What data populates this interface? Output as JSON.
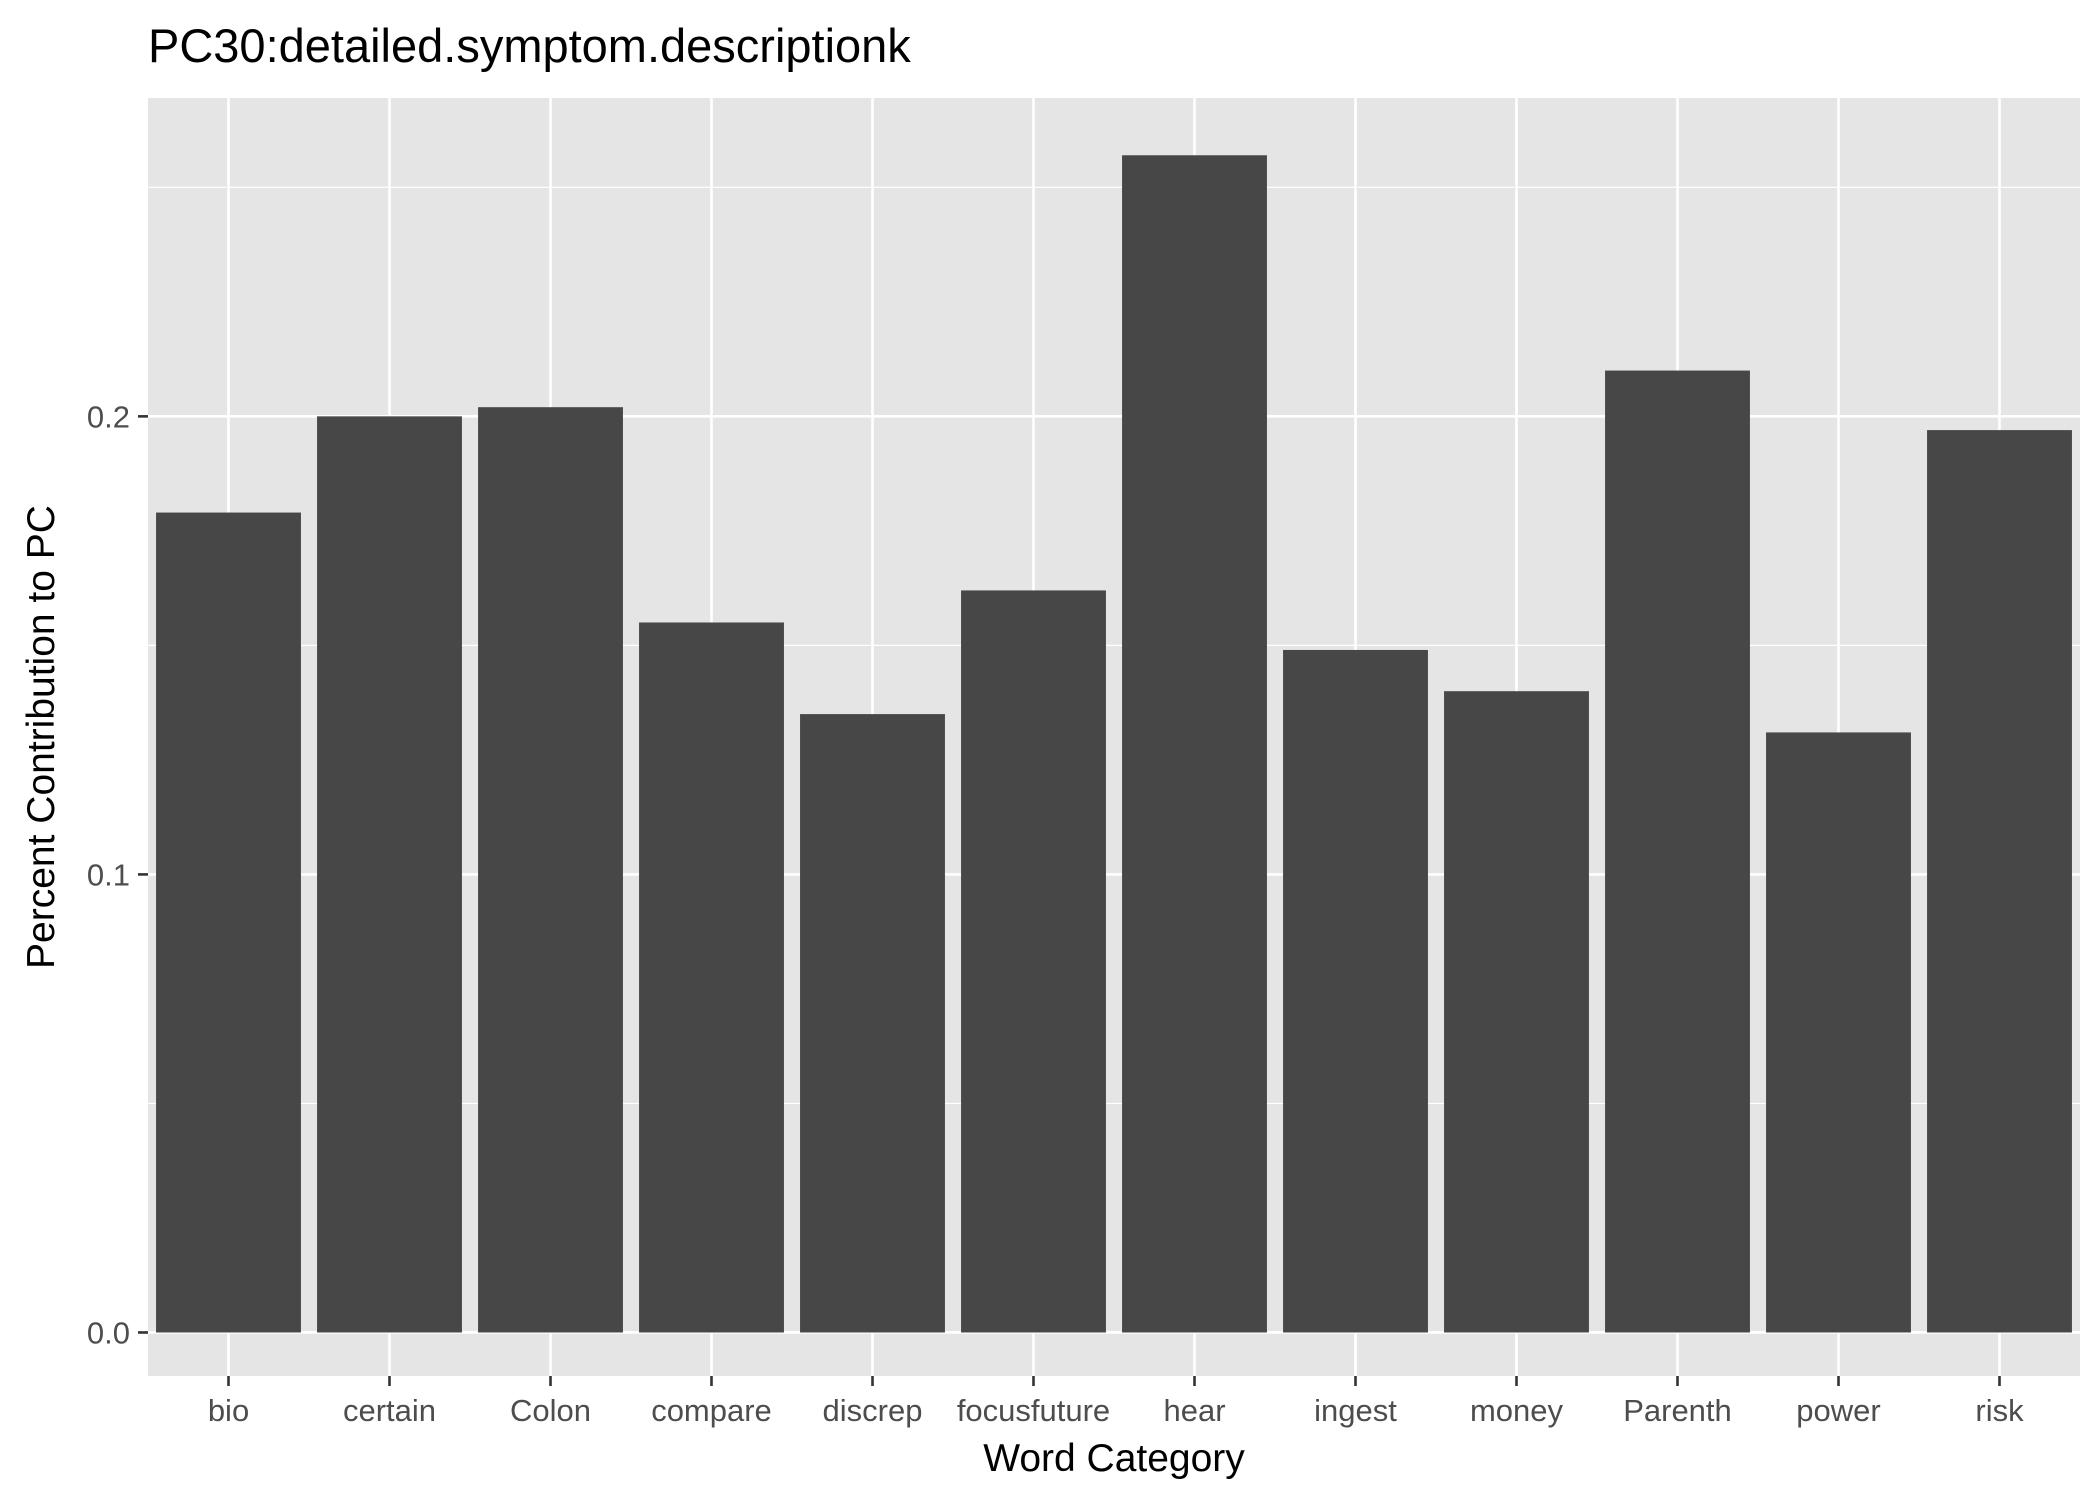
{
  "chart_data": {
    "type": "bar",
    "title": "PC30:detailed.symptom.descriptionk",
    "xlabel": "Word Category",
    "ylabel": "Percent Contribution to PC",
    "categories": [
      "bio",
      "certain",
      "Colon",
      "compare",
      "discrep",
      "focusfuture",
      "hear",
      "ingest",
      "money",
      "Parenth",
      "power",
      "risk"
    ],
    "values": [
      0.179,
      0.2,
      0.202,
      0.155,
      0.135,
      0.162,
      0.257,
      0.149,
      0.14,
      0.21,
      0.131,
      0.197
    ],
    "y_ticks": [
      0.0,
      0.1,
      0.2
    ],
    "y_tick_labels": [
      "0.0",
      "0.1",
      "0.2"
    ],
    "ylim": [
      -0.0095,
      0.2695
    ],
    "grid": true,
    "legend": "none",
    "colors": {
      "panel_background": "#e5e5e5",
      "grid": "#ffffff",
      "bar": "#474747",
      "tick_label": "#4d4d4d",
      "text": "#000000"
    }
  }
}
